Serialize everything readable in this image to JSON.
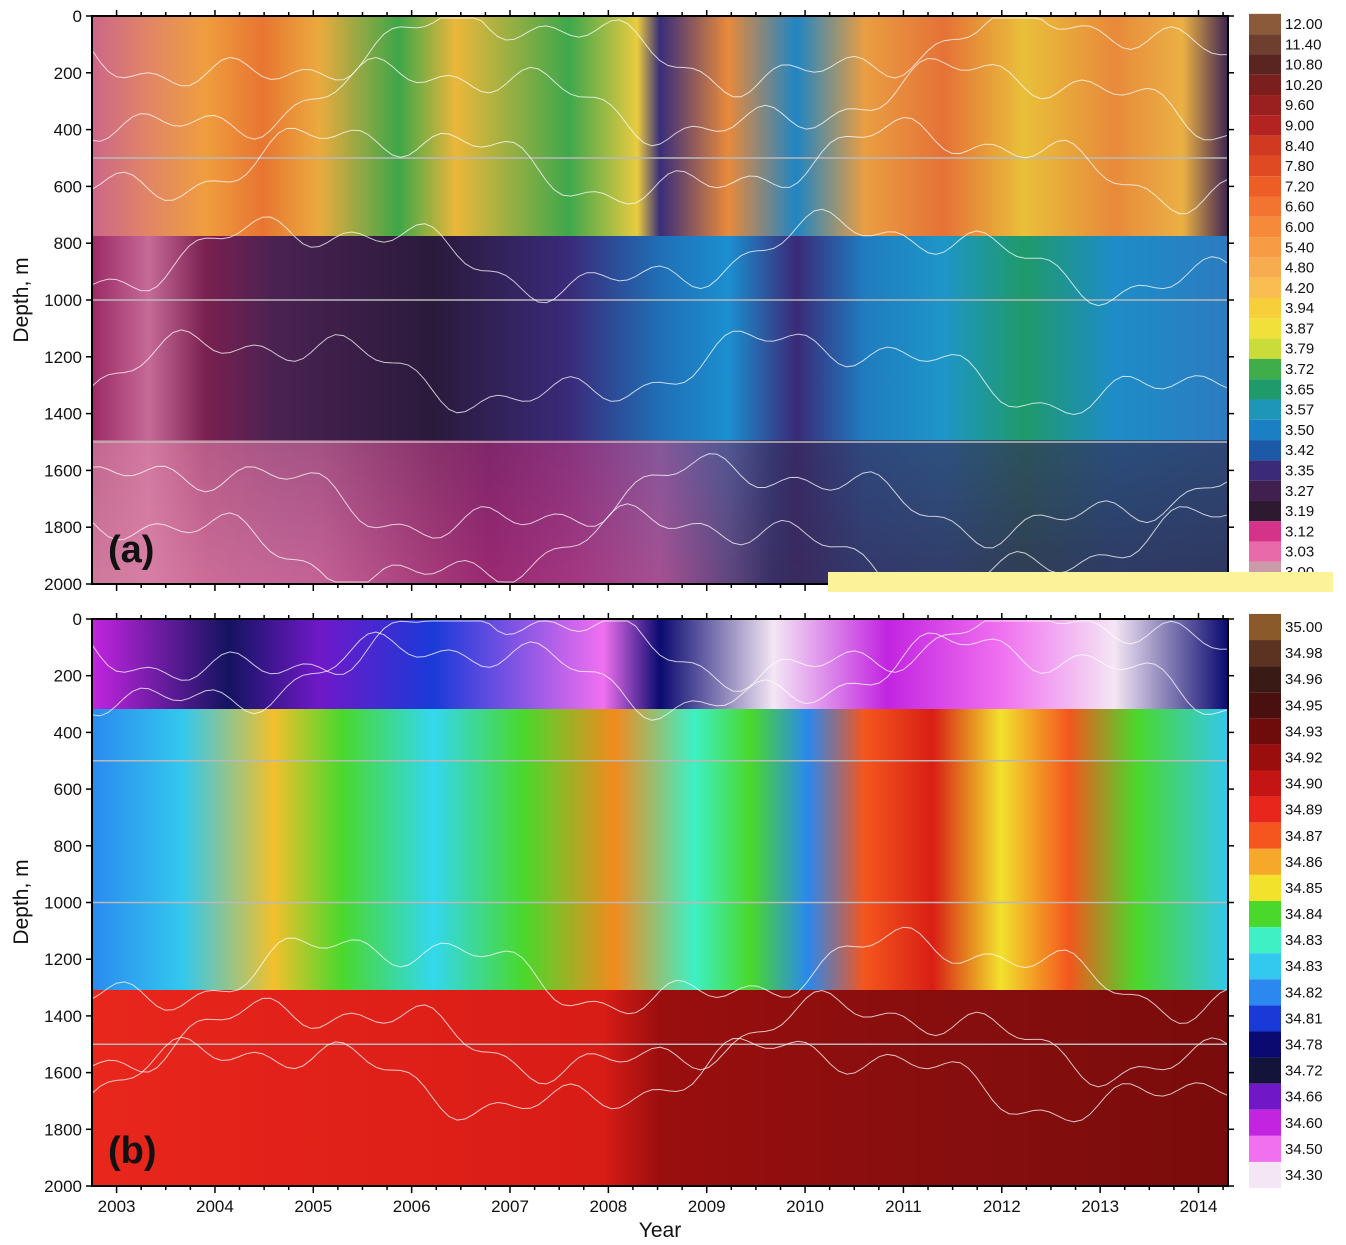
{
  "chart_data": [
    {
      "type": "heatmap",
      "panel_label": "(a)",
      "ylabel": "Depth, m",
      "xlabel": "",
      "xlim": [
        2002.75,
        2014.3
      ],
      "ylim": [
        2000,
        0
      ],
      "y_ticks": [
        0,
        200,
        400,
        600,
        800,
        1000,
        1200,
        1400,
        1600,
        1800,
        2000
      ],
      "x_ticks": [
        2003,
        2004,
        2005,
        2006,
        2007,
        2008,
        2009,
        2010,
        2011,
        2012,
        2013,
        2014
      ],
      "reference_depths": [
        500,
        1000,
        1500
      ],
      "colorbar": {
        "labels": [
          "12.00",
          "11.40",
          "10.80",
          "10.20",
          "9.60",
          "9.00",
          "8.40",
          "7.80",
          "7.20",
          "6.60",
          "6.00",
          "5.40",
          "4.80",
          "4.20",
          "3.94",
          "3.87",
          "3.79",
          "3.72",
          "3.65",
          "3.57",
          "3.50",
          "3.42",
          "3.35",
          "3.27",
          "3.19",
          "3.12",
          "3.03",
          "3.00"
        ],
        "colors": [
          "#8a5a3a",
          "#6e3f2e",
          "#5a2520",
          "#7a1e1e",
          "#9a2020",
          "#b52222",
          "#cf3a20",
          "#e04a22",
          "#ec5e26",
          "#f37430",
          "#f58a3a",
          "#f79b45",
          "#f8ac50",
          "#f9bd52",
          "#f6cf3a",
          "#f2e03a",
          "#c9dc3a",
          "#3fae4a",
          "#1f9a6a",
          "#1e96b8",
          "#1b7fc4",
          "#1c5aa8",
          "#3a2a78",
          "#40204e",
          "#2e1a30",
          "#d5338a",
          "#e86aa8",
          "#c99aa8"
        ]
      }
    },
    {
      "type": "heatmap",
      "panel_label": "(b)",
      "ylabel": "Depth, m",
      "xlabel": "Year",
      "xlim": [
        2002.75,
        2014.3
      ],
      "ylim": [
        2000,
        0
      ],
      "y_ticks": [
        0,
        200,
        400,
        600,
        800,
        1000,
        1200,
        1400,
        1600,
        1800,
        2000
      ],
      "x_ticks": [
        2003,
        2004,
        2005,
        2006,
        2007,
        2008,
        2009,
        2010,
        2011,
        2012,
        2013,
        2014
      ],
      "reference_depths": [
        500,
        1000,
        1500
      ],
      "colorbar": {
        "labels": [
          "35.00",
          "34.98",
          "34.96",
          "34.95",
          "34.93",
          "34.92",
          "34.90",
          "34.89",
          "34.87",
          "34.86",
          "34.85",
          "34.84",
          "34.83",
          "34.83",
          "34.82",
          "34.81",
          "34.78",
          "34.72",
          "34.66",
          "34.60",
          "34.50",
          "34.30"
        ],
        "colors": [
          "#8a5a2a",
          "#5c3220",
          "#3a1a14",
          "#4a1010",
          "#6e0c0c",
          "#9a0e0e",
          "#c41414",
          "#e8261c",
          "#f4561e",
          "#f6a82a",
          "#f2e22c",
          "#4ad82c",
          "#3ef0c4",
          "#33c8ee",
          "#2a88ee",
          "#1a3ad8",
          "#0a0a70",
          "#14143a",
          "#7018c8",
          "#c224e0",
          "#f070f0",
          "#f4e6f4"
        ]
      }
    }
  ]
}
